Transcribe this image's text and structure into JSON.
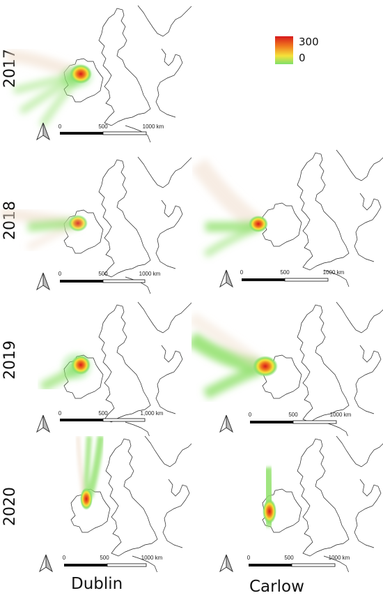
{
  "legend": {
    "max_label": "300",
    "min_label": "0",
    "colors": {
      "high": "#d7191c",
      "mid": "#f5e23a",
      "low": "#7ee06a"
    }
  },
  "years": [
    "2017",
    "2018",
    "2019",
    "2020"
  ],
  "sites": [
    "Dublin",
    "Carlow"
  ],
  "scalebars": {
    "dublin_2017": [
      "0",
      "500",
      "1000 km"
    ],
    "dublin_2018": [
      "0",
      "500",
      "1000 km"
    ],
    "dublin_2019": [
      "0",
      "500",
      "1,000 km"
    ],
    "dublin_2020": [
      "0",
      "500",
      "1000 km"
    ],
    "carlow_2018": [
      "0",
      "500",
      "1000 km"
    ],
    "carlow_2019": [
      "0",
      "500",
      "1000 km"
    ],
    "carlow_2020": [
      "0",
      "500",
      "1000 km"
    ]
  },
  "panels": [
    {
      "site": "Dublin",
      "year": "2017",
      "density": "high",
      "plume": "southwest fan"
    },
    {
      "site": "Dublin",
      "year": "2018",
      "density": "medium",
      "plume": "west"
    },
    {
      "site": "Dublin",
      "year": "2019",
      "density": "high",
      "plume": "southwest"
    },
    {
      "site": "Dublin",
      "year": "2020",
      "density": "high",
      "plume": "north"
    },
    {
      "site": "Carlow",
      "year": "2018",
      "density": "high",
      "plume": "west"
    },
    {
      "site": "Carlow",
      "year": "2019",
      "density": "high",
      "plume": "west broad"
    },
    {
      "site": "Carlow",
      "year": "2020",
      "density": "high",
      "plume": "north"
    }
  ]
}
